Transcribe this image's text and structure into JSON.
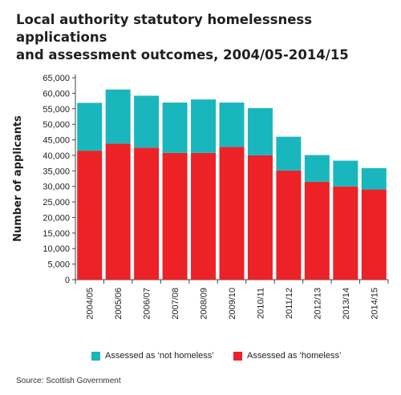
{
  "title_line1": "Local authority statutory homelessness applications",
  "title_line2": "and assessment outcomes, 2004/05-2014/15",
  "source": "Source: Scottish Government",
  "colors": {
    "homeless": "#ec2227",
    "not_homeless": "#1ab6bd",
    "axis": "#444444",
    "grid": "#d9d9d9"
  },
  "chart_data": {
    "type": "bar",
    "stacked": true,
    "title": "Local authority statutory homelessness applications and assessment outcomes, 2004/05-2014/15",
    "xlabel": "",
    "ylabel": "Number of applicants",
    "ylim": [
      0,
      65000
    ],
    "yticks": [
      0,
      5000,
      10000,
      15000,
      20000,
      25000,
      30000,
      35000,
      40000,
      45000,
      50000,
      55000,
      60000,
      65000
    ],
    "ytick_labels": [
      "0",
      "5,000",
      "10,000",
      "15,000",
      "20,000",
      "25,000",
      "30,000",
      "35,000",
      "40,000",
      "45,000",
      "50,000",
      "55,000",
      "60,000",
      "65,000"
    ],
    "categories": [
      "2004/05",
      "2005/06",
      "2006/07",
      "2007/08",
      "2008/09",
      "2009/10",
      "2010/11",
      "2011/12",
      "2012/13",
      "2013/14",
      "2014/15"
    ],
    "series": [
      {
        "name": "Assessed as ‘homeless’",
        "color": "#ec2227",
        "values": [
          41500,
          43800,
          42500,
          40800,
          40800,
          42700,
          40000,
          35100,
          31500,
          30000,
          29000
        ]
      },
      {
        "name": "Assessed as ‘not homeless’",
        "color": "#1ab6bd",
        "values": [
          15400,
          17400,
          16700,
          16200,
          17200,
          14300,
          15200,
          10900,
          8600,
          8300,
          6900
        ]
      }
    ],
    "legend_position": "bottom",
    "grid": false
  }
}
